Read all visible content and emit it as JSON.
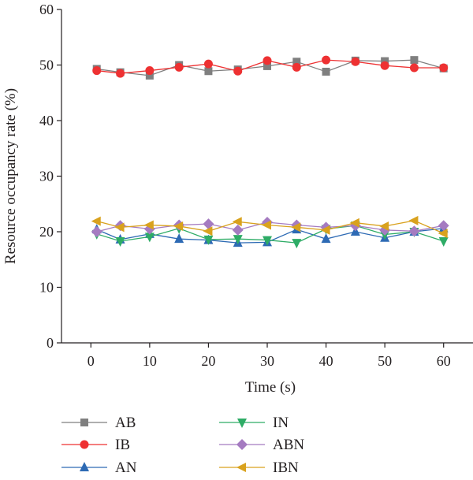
{
  "chart_data": {
    "type": "line",
    "xlabel": "Time (s)",
    "ylabel": "Resource occupancy rate (%)",
    "xlim": [
      -5,
      65
    ],
    "ylim": [
      0,
      60
    ],
    "x_ticks": [
      0,
      10,
      20,
      30,
      40,
      50,
      60
    ],
    "y_ticks": [
      0,
      10,
      20,
      30,
      40,
      50,
      60
    ],
    "grid": false,
    "legend_position": "bottom",
    "series": [
      {
        "name": "AB",
        "color": "#7f7f7f",
        "marker": "square",
        "x": [
          1,
          5,
          10,
          15,
          20,
          25,
          30,
          35,
          40,
          45,
          50,
          55,
          60
        ],
        "y": [
          49.3,
          48.7,
          48.1,
          50.0,
          48.9,
          49.2,
          49.8,
          50.6,
          48.8,
          50.8,
          50.7,
          50.9,
          49.4
        ]
      },
      {
        "name": "IB",
        "color": "#ee3132",
        "marker": "circle",
        "x": [
          1,
          5,
          10,
          15,
          20,
          25,
          30,
          35,
          40,
          45,
          50,
          55,
          60
        ],
        "y": [
          49.0,
          48.5,
          49.0,
          49.6,
          50.2,
          48.9,
          50.8,
          49.6,
          50.9,
          50.6,
          49.9,
          49.5,
          49.5
        ]
      },
      {
        "name": "AN",
        "color": "#2d6ab4",
        "marker": "triangle-up",
        "x": [
          1,
          5,
          10,
          15,
          20,
          25,
          30,
          35,
          40,
          45,
          50,
          55,
          60
        ],
        "y": [
          20.4,
          18.6,
          19.6,
          18.7,
          18.5,
          18.0,
          18.1,
          20.4,
          18.7,
          20.0,
          18.9,
          20.0,
          20.6
        ]
      },
      {
        "name": "IN",
        "color": "#2eac66",
        "marker": "triangle-down",
        "x": [
          1,
          5,
          10,
          15,
          20,
          25,
          30,
          35,
          40,
          45,
          50,
          55,
          60
        ],
        "y": [
          19.6,
          18.3,
          19.1,
          20.6,
          18.6,
          18.7,
          18.5,
          18.0,
          20.5,
          21.1,
          19.5,
          20.0,
          18.3
        ]
      },
      {
        "name": "ABN",
        "color": "#a57bc1",
        "marker": "diamond",
        "x": [
          1,
          5,
          10,
          15,
          20,
          25,
          30,
          35,
          40,
          45,
          50,
          55,
          60
        ],
        "y": [
          20.0,
          21.1,
          20.5,
          21.2,
          21.4,
          20.3,
          21.7,
          21.2,
          20.8,
          21.1,
          20.3,
          20.1,
          21.1
        ]
      },
      {
        "name": "IBN",
        "color": "#d9a21e",
        "marker": "triangle-left",
        "x": [
          1,
          5,
          10,
          15,
          20,
          25,
          30,
          35,
          40,
          45,
          50,
          55,
          60
        ],
        "y": [
          21.9,
          20.8,
          21.2,
          21.0,
          20.1,
          21.8,
          21.2,
          20.8,
          20.3,
          21.6,
          21.0,
          22.0,
          19.7
        ]
      }
    ]
  }
}
